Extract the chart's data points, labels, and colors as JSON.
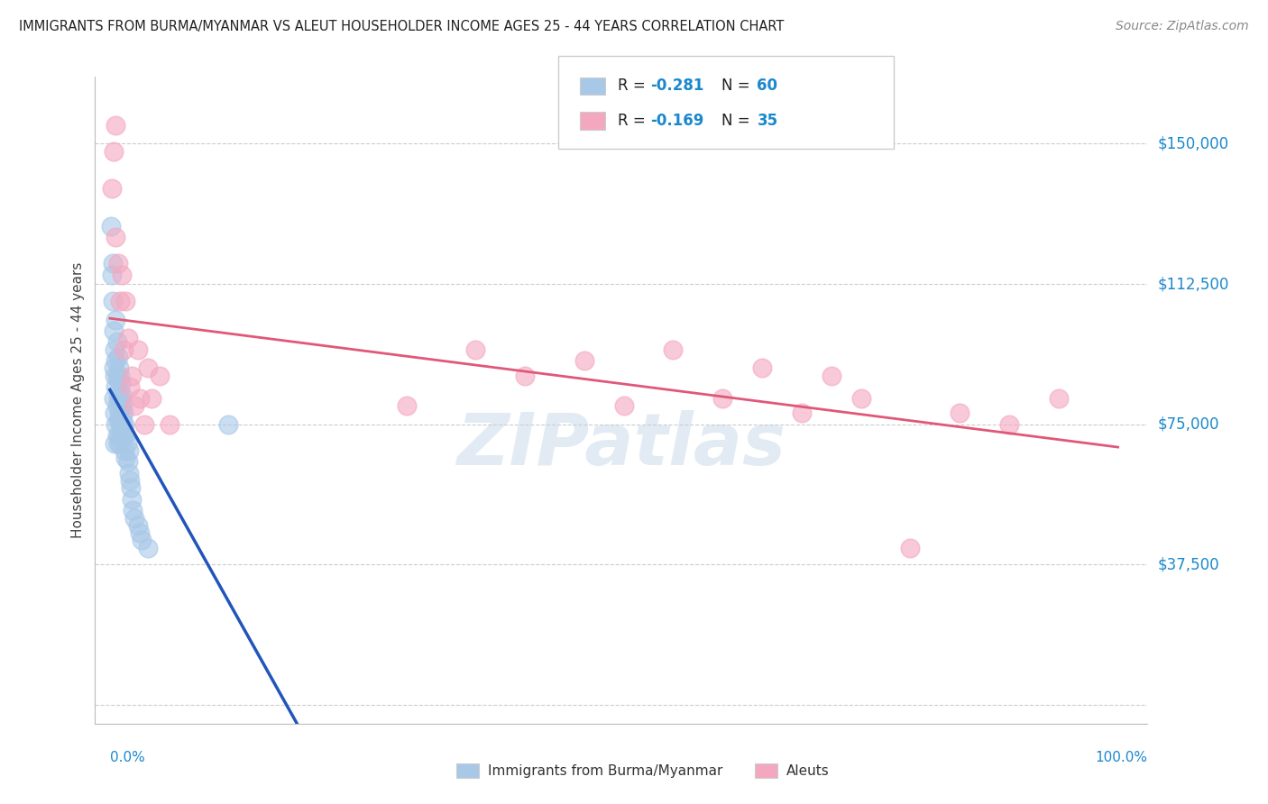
{
  "title": "IMMIGRANTS FROM BURMA/MYANMAR VS ALEUT HOUSEHOLDER INCOME AGES 25 - 44 YEARS CORRELATION CHART",
  "source": "Source: ZipAtlas.com",
  "ylabel": "Householder Income Ages 25 - 44 years",
  "ytick_vals": [
    0,
    37500,
    75000,
    112500,
    150000
  ],
  "ytick_labels": [
    "",
    "$37,500",
    "$75,000",
    "$112,500",
    "$150,000"
  ],
  "ylim": [
    -5000,
    168000
  ],
  "xlim": [
    -0.015,
    1.05
  ],
  "blue_color": "#a8c8e8",
  "pink_color": "#f4a8c0",
  "blue_line_color": "#2255bb",
  "pink_line_color": "#e05878",
  "watermark": "ZIPatlas",
  "blue_x": [
    0.001,
    0.002,
    0.003,
    0.003,
    0.004,
    0.004,
    0.004,
    0.005,
    0.005,
    0.005,
    0.005,
    0.006,
    0.006,
    0.006,
    0.006,
    0.007,
    0.007,
    0.007,
    0.007,
    0.008,
    0.008,
    0.008,
    0.008,
    0.008,
    0.009,
    0.009,
    0.009,
    0.009,
    0.01,
    0.01,
    0.01,
    0.01,
    0.011,
    0.011,
    0.011,
    0.012,
    0.012,
    0.012,
    0.013,
    0.013,
    0.014,
    0.014,
    0.015,
    0.015,
    0.016,
    0.016,
    0.017,
    0.018,
    0.019,
    0.019,
    0.02,
    0.021,
    0.022,
    0.023,
    0.025,
    0.028,
    0.03,
    0.032,
    0.038,
    0.12
  ],
  "blue_y": [
    128000,
    115000,
    108000,
    118000,
    100000,
    90000,
    82000,
    95000,
    88000,
    78000,
    70000,
    103000,
    92000,
    85000,
    75000,
    97000,
    88000,
    80000,
    72000,
    93000,
    87000,
    82000,
    76000,
    70000,
    90000,
    84000,
    78000,
    72000,
    88000,
    82000,
    76000,
    70000,
    86000,
    80000,
    74000,
    83000,
    77000,
    71000,
    80000,
    75000,
    78000,
    72000,
    75000,
    68000,
    72000,
    66000,
    70000,
    65000,
    62000,
    68000,
    60000,
    58000,
    55000,
    52000,
    50000,
    48000,
    46000,
    44000,
    42000,
    75000
  ],
  "pink_x": [
    0.002,
    0.004,
    0.006,
    0.006,
    0.008,
    0.01,
    0.012,
    0.014,
    0.016,
    0.018,
    0.02,
    0.022,
    0.025,
    0.028,
    0.03,
    0.035,
    0.038,
    0.042,
    0.05,
    0.06,
    0.3,
    0.37,
    0.42,
    0.48,
    0.52,
    0.57,
    0.62,
    0.66,
    0.7,
    0.73,
    0.76,
    0.81,
    0.86,
    0.91,
    0.96
  ],
  "pink_y": [
    138000,
    148000,
    125000,
    155000,
    118000,
    108000,
    115000,
    95000,
    108000,
    98000,
    85000,
    88000,
    80000,
    95000,
    82000,
    75000,
    90000,
    82000,
    88000,
    75000,
    80000,
    95000,
    88000,
    92000,
    80000,
    95000,
    82000,
    90000,
    78000,
    88000,
    82000,
    42000,
    78000,
    75000,
    82000
  ]
}
